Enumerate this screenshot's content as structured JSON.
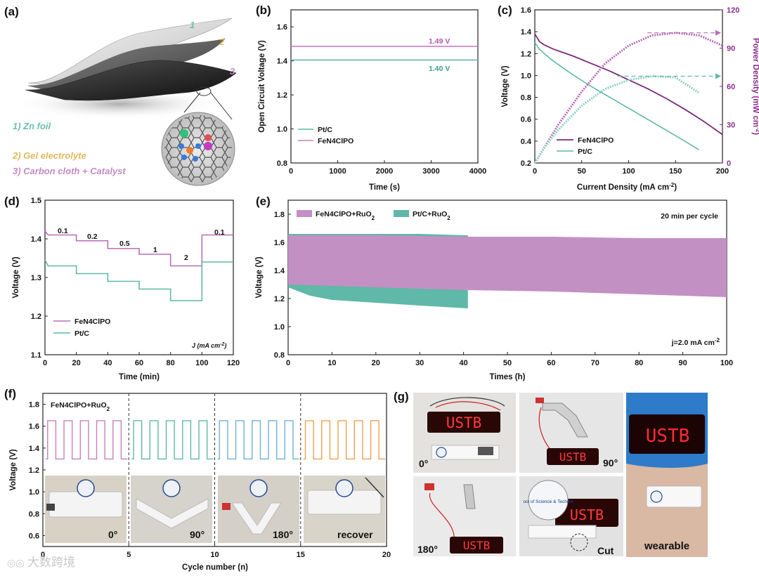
{
  "panel_labels": {
    "a": "(a)",
    "b": "(b)",
    "c": "(c)",
    "d": "(d)",
    "e": "(e)",
    "f": "(f)",
    "g": "(g)"
  },
  "panel_a": {
    "layer_numbers": [
      "1",
      "2",
      "3"
    ],
    "captions": [
      "1) Zn foil",
      "2) Gel electrolyte",
      "3) Carbon cloth + Catalyst"
    ]
  },
  "chart_data": [
    {
      "id": "b",
      "type": "line",
      "title": "",
      "xlabel": "Time (s)",
      "ylabel": "Open Circuit Voltage (V)",
      "xlim": [
        0,
        4000
      ],
      "ylim": [
        0.8,
        1.7
      ],
      "xticks": [
        "0",
        "1000",
        "2000",
        "3000",
        "4000"
      ],
      "yticks": [
        "0.8",
        "1.0",
        "1.2",
        "1.4",
        "1.6"
      ],
      "series": [
        {
          "name": "Pt/C",
          "color": "#5fb8a8",
          "x": [
            0,
            4000
          ],
          "y": [
            1.405,
            1.405
          ]
        },
        {
          "name": "FeN4ClPO",
          "color": "#c77fc1",
          "x": [
            0,
            4000
          ],
          "y": [
            1.485,
            1.485
          ]
        }
      ],
      "annotations": [
        {
          "text": "1.49 V",
          "color": "#b05aa8"
        },
        {
          "text": "1.40 V",
          "color": "#3a9e8c"
        }
      ],
      "legend": [
        "Pt/C",
        "FeN4ClPO"
      ]
    },
    {
      "id": "c",
      "type": "line",
      "xlabel": "Current Density (mA cm⁻²)",
      "xlabel_main": "Current Density (mA cm",
      "xlabel_sup": "-2",
      "xlabel_close": ")",
      "ylabel": "Voltage (V)",
      "y2label": "Power Density (mW cm⁻²)",
      "y2label_main": "Power Density (mW cm",
      "y2label_sup": "-2",
      "y2label_close": ")",
      "xlim": [
        0,
        200
      ],
      "ylim": [
        0.2,
        1.6
      ],
      "y2lim": [
        0,
        120
      ],
      "xticks": [
        "0",
        "50",
        "100",
        "150",
        "200"
      ],
      "yticks": [
        "0.2",
        "0.4",
        "0.6",
        "0.8",
        "1.0",
        "1.2",
        "1.4",
        "1.6"
      ],
      "y2ticks": [
        "0",
        "30",
        "60",
        "90",
        "120"
      ],
      "series": [
        {
          "name": "FeN4ClPO voltage",
          "color": "#7a2a7a",
          "x": [
            0,
            5,
            10,
            20,
            40,
            60,
            80,
            100,
            120,
            140,
            160,
            180,
            200
          ],
          "y": [
            1.38,
            1.31,
            1.28,
            1.24,
            1.18,
            1.11,
            1.04,
            0.96,
            0.88,
            0.79,
            0.69,
            0.58,
            0.46
          ]
        },
        {
          "name": "Pt/C voltage",
          "color": "#5fb8a8",
          "x": [
            0,
            5,
            10,
            20,
            40,
            60,
            80,
            100,
            120,
            140,
            160,
            175
          ],
          "y": [
            1.3,
            1.24,
            1.2,
            1.13,
            1.01,
            0.9,
            0.8,
            0.7,
            0.6,
            0.5,
            0.4,
            0.32
          ]
        },
        {
          "name": "FeN4ClPO power",
          "color": "#b86eb5",
          "x": [
            0,
            10,
            25,
            50,
            75,
            100,
            125,
            150,
            175,
            200
          ],
          "y": [
            0,
            12,
            30,
            56,
            78,
            92,
            100,
            102,
            100,
            92
          ]
        },
        {
          "name": "Pt/C power",
          "color": "#8fd0c4",
          "x": [
            0,
            10,
            25,
            50,
            75,
            100,
            125,
            150,
            175
          ],
          "y": [
            0,
            12,
            26,
            45,
            58,
            65,
            68,
            67,
            55
          ]
        }
      ],
      "annotations": [
        {
          "value": 102
        },
        {
          "value": 68
        }
      ],
      "legend": [
        "FeN4ClPO",
        "Pt/C"
      ]
    },
    {
      "id": "d",
      "type": "line",
      "xlabel": "Time (min)",
      "ylabel": "Voltage (V)",
      "xlim": [
        0,
        120
      ],
      "ylim": [
        1.1,
        1.5
      ],
      "xticks": [
        "0",
        "20",
        "40",
        "60",
        "80",
        "100",
        "120"
      ],
      "yticks": [
        "1.1",
        "1.2",
        "1.3",
        "1.4",
        "1.5"
      ],
      "series": [
        {
          "name": "FeN4ClPO",
          "color": "#b86eb5",
          "segments": [
            [
              0,
              20,
              1.41
            ],
            [
              20,
              40,
              1.395
            ],
            [
              40,
              60,
              1.375
            ],
            [
              60,
              80,
              1.36
            ],
            [
              80,
              100,
              1.33
            ],
            [
              100,
              120,
              1.41
            ]
          ]
        },
        {
          "name": "Pt/C",
          "color": "#5fb8a8",
          "segments": [
            [
              0,
              20,
              1.33
            ],
            [
              20,
              40,
              1.31
            ],
            [
              40,
              60,
              1.29
            ],
            [
              60,
              80,
              1.27
            ],
            [
              80,
              100,
              1.24
            ],
            [
              100,
              120,
              1.34
            ]
          ]
        }
      ],
      "current_labels": [
        "0.1",
        "0.2",
        "0.5",
        "1",
        "2",
        "0.1"
      ],
      "unit_label_main": "J (mA cm",
      "unit_label_sup": "-2",
      "unit_label_close": ")",
      "legend": [
        "FeN4ClPO",
        "Pt/C"
      ]
    },
    {
      "id": "e",
      "type": "area",
      "xlabel": "Times (h)",
      "ylabel": "Voltage (V)",
      "xlim": [
        0,
        100
      ],
      "ylim": [
        0.8,
        1.9
      ],
      "xticks": [
        "0",
        "10",
        "20",
        "30",
        "40",
        "50",
        "60",
        "70",
        "80",
        "90",
        "100"
      ],
      "yticks": [
        "0.8",
        "1.0",
        "1.2",
        "1.4",
        "1.6",
        "1.8"
      ],
      "series": [
        {
          "name": "Pt/C+RuO₂",
          "color": "#5fb8a8",
          "x": [
            0,
            5,
            10,
            20,
            30,
            41
          ],
          "upper": [
            1.66,
            1.66,
            1.66,
            1.66,
            1.66,
            1.65
          ],
          "lower": [
            1.28,
            1.22,
            1.19,
            1.17,
            1.15,
            1.13
          ]
        },
        {
          "name": "FeN4ClPO+RuO₂",
          "color": "#c390c3",
          "x": [
            0,
            20,
            41,
            60,
            80,
            100
          ],
          "upper": [
            1.65,
            1.65,
            1.64,
            1.64,
            1.63,
            1.63
          ],
          "lower": [
            1.3,
            1.28,
            1.26,
            1.25,
            1.23,
            1.21
          ]
        }
      ],
      "legend_names": {
        "fe_main": "FeN4ClPO+RuO",
        "fe_sub": "2",
        "pt_main": "Pt/C+RuO",
        "pt_sub": "2"
      },
      "note": "20 min per cycle",
      "current_main": "j=2.0 mA cm",
      "current_sup": "-2"
    },
    {
      "id": "f",
      "type": "line",
      "xlabel": "Cycle number (n)",
      "ylabel": "Voltage (V)",
      "xlim": [
        0,
        20
      ],
      "ylim": [
        0.5,
        1.9
      ],
      "xticks": [
        "0",
        "5",
        "10",
        "15",
        "20"
      ],
      "yticks": [
        "0.6",
        "0.8",
        "1.0",
        "1.2",
        "1.4",
        "1.6",
        "1.8"
      ],
      "series": [
        {
          "name": "0°",
          "color": "#c77fc1",
          "range": [
            0,
            5
          ],
          "high": 1.65,
          "low": 1.3
        },
        {
          "name": "90°",
          "color": "#5fb8a8",
          "range": [
            5,
            10
          ],
          "high": 1.65,
          "low": 1.3
        },
        {
          "name": "180°",
          "color": "#6fb0d8",
          "range": [
            10,
            15
          ],
          "high": 1.65,
          "low": 1.3
        },
        {
          "name": "recover",
          "color": "#f0a050",
          "range": [
            15,
            20
          ],
          "high": 1.65,
          "low": 1.3
        }
      ],
      "dividers": [
        5,
        10,
        15
      ],
      "label_main": "FeN4ClPO+RuO",
      "label_sub": "2",
      "photo_captions": [
        "0°",
        "90°",
        "180°",
        "recover"
      ]
    }
  ],
  "panel_g": {
    "display_text": "USTB",
    "captions": [
      "0°",
      "90°",
      "180°",
      "Cut",
      "wearable"
    ],
    "circle_text": "ool of Science & Technol"
  },
  "watermark": "大数跨境"
}
